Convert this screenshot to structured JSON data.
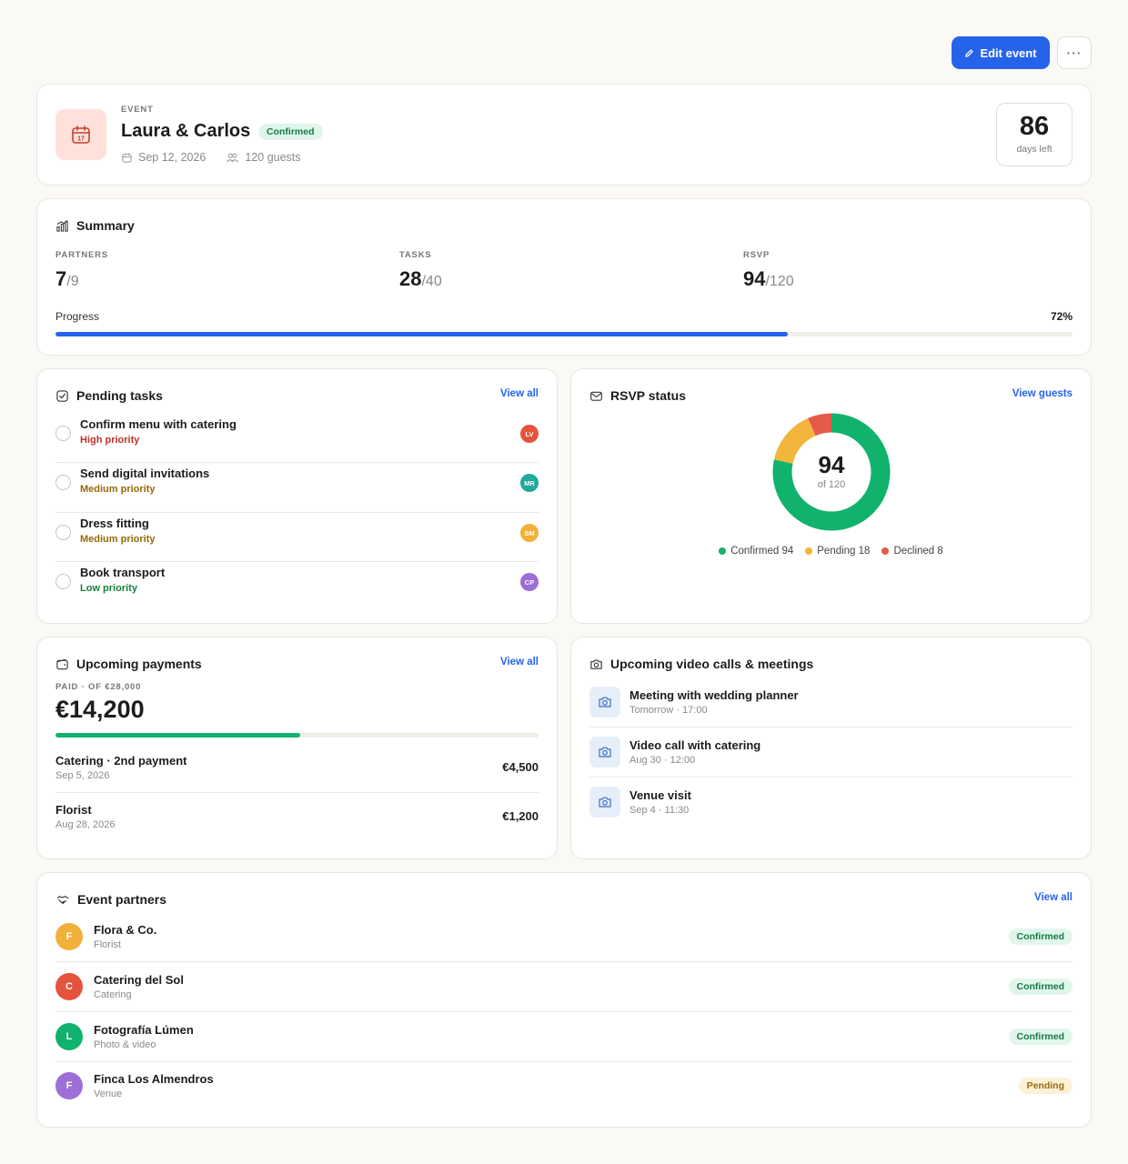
{
  "toolbar": {
    "edit_label": "Edit event",
    "more_label": "···"
  },
  "event": {
    "kicker": "EVENT",
    "title": "Laura & Carlos",
    "status": "Confirmed",
    "date": "Sep 12, 2026",
    "guests": "120 guests",
    "days_left": "86",
    "days_left_label": "days left",
    "icon_day": "17"
  },
  "summary": {
    "title": "Summary",
    "stats": [
      {
        "label": "PARTNERS",
        "value": "7",
        "total": "/9"
      },
      {
        "label": "TASKS",
        "value": "28",
        "total": "/40"
      },
      {
        "label": "RSVP",
        "value": "94",
        "total": "/120"
      }
    ],
    "progress_label": "Progress",
    "progress_text": "72%",
    "progress_value": 72
  },
  "tasks": {
    "title": "Pending tasks",
    "link": "View all",
    "items": [
      {
        "title": "Confirm menu with catering",
        "priority": "High priority",
        "level": "high",
        "assignee": "LV",
        "color": "#e5533d"
      },
      {
        "title": "Send digital invitations",
        "priority": "Medium priority",
        "level": "med",
        "assignee": "MR",
        "color": "#21a99a"
      },
      {
        "title": "Dress fitting",
        "priority": "Medium priority",
        "level": "med",
        "assignee": "SM",
        "color": "#f0b03a"
      },
      {
        "title": "Book transport",
        "priority": "Low priority",
        "level": "low",
        "assignee": "CP",
        "color": "#9b6fd6"
      }
    ]
  },
  "rsvp": {
    "title": "RSVP status",
    "link": "View guests",
    "center_value": "94",
    "center_sub": "of 120",
    "segments": [
      {
        "label": "Confirmed 94",
        "value": 94,
        "color": "#10b26c"
      },
      {
        "label": "Pending 18",
        "value": 18,
        "color": "#f2b63c"
      },
      {
        "label": "Declined 8",
        "value": 8,
        "color": "#e65a4a"
      }
    ]
  },
  "payments": {
    "title": "Upcoming payments",
    "link": "View all",
    "kicker": "PAID · OF €28,000",
    "paid": "€14,200",
    "paid_fraction": 0.507,
    "items": [
      {
        "title": "Catering · 2nd payment",
        "date": "Sep 5, 2026",
        "amount": "€4,500"
      },
      {
        "title": "Florist",
        "date": "Aug 28, 2026",
        "amount": "€1,200"
      }
    ]
  },
  "meetings": {
    "title": "Upcoming video calls & meetings",
    "items": [
      {
        "title": "Meeting with wedding planner",
        "sub": "Tomorrow · 17:00"
      },
      {
        "title": "Video call with catering",
        "sub": "Aug 30 · 12:00"
      },
      {
        "title": "Venue visit",
        "sub": "Sep 4 · 11:30"
      }
    ]
  },
  "partners": {
    "title": "Event partners",
    "link": "View all",
    "items": [
      {
        "initial": "F",
        "name": "Flora & Co.",
        "type": "Florist",
        "status": "Confirmed",
        "state": "confirmed",
        "color": "#f0b03a"
      },
      {
        "initial": "C",
        "name": "Catering del Sol",
        "type": "Catering",
        "status": "Confirmed",
        "state": "confirmed",
        "color": "#e5533d"
      },
      {
        "initial": "L",
        "name": "Fotografía Lúmen",
        "type": "Photo & video",
        "status": "Confirmed",
        "state": "confirmed",
        "color": "#10b26c"
      },
      {
        "initial": "F",
        "name": "Finca Los Almendros",
        "type": "Venue",
        "status": "Pending",
        "state": "pending",
        "color": "#9b6fd6"
      }
    ]
  },
  "colors": {
    "accent": "#2563eb",
    "success": "#10b26c",
    "warning": "#f2b63c",
    "danger": "#e65a4a"
  }
}
